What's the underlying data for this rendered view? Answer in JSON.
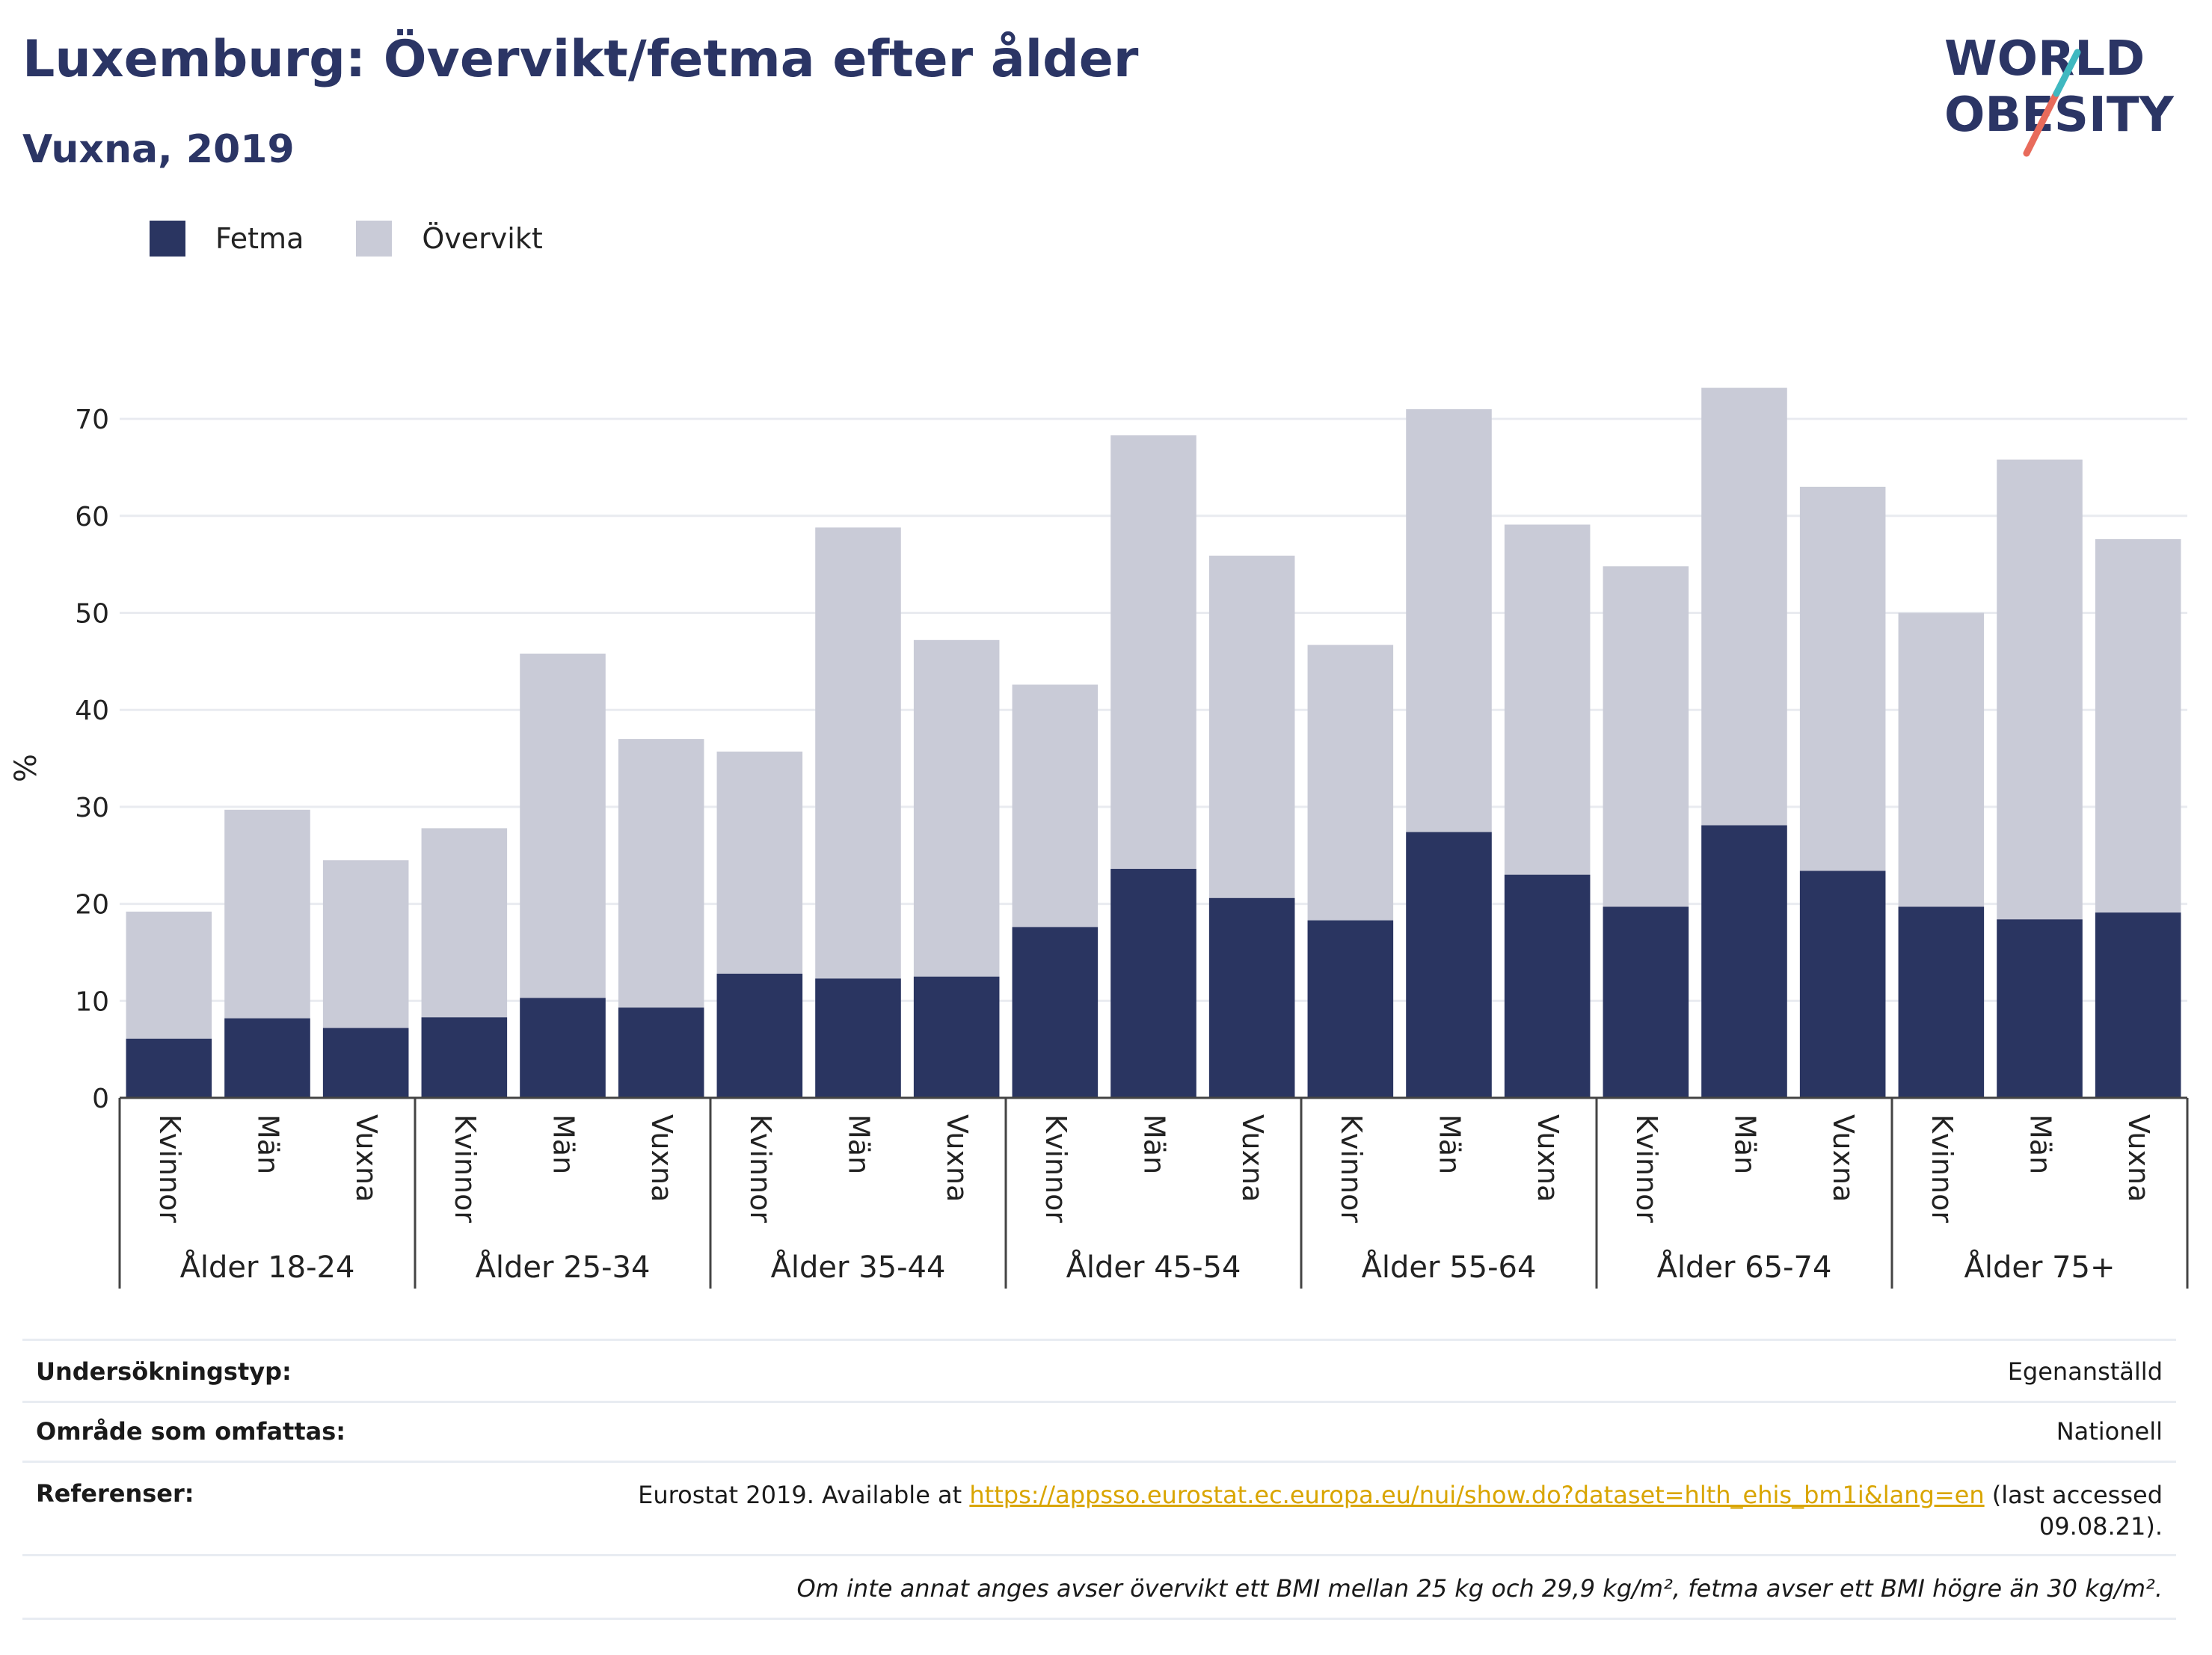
{
  "header": {
    "title": "Luxemburg: Övervikt/fetma efter ålder",
    "subtitle": "Vuxna, 2019"
  },
  "logo": {
    "line1": "WORLD",
    "line2": "OBESITY"
  },
  "legend": [
    {
      "label": "Fetma",
      "color": "#2a3561"
    },
    {
      "label": "Övervikt",
      "color": "#c9cbd7"
    }
  ],
  "chart_data": {
    "type": "bar",
    "stacked": false,
    "ylabel": "%",
    "ylim": [
      0,
      75
    ],
    "yticks": [
      0,
      10,
      20,
      30,
      40,
      50,
      60,
      70
    ],
    "grid": true,
    "legend_position": "top-left",
    "groups": [
      "Ålder 18-24",
      "Ålder 25-34",
      "Ålder 35-44",
      "Ålder 45-54",
      "Ålder 55-64",
      "Ålder 65-74",
      "Ålder 75+"
    ],
    "subcategories": [
      "Kvinnor",
      "Män",
      "Vuxna"
    ],
    "series": [
      {
        "name": "Fetma",
        "color": "#2a3561",
        "values": [
          6.1,
          8.2,
          7.2,
          8.3,
          10.3,
          9.3,
          12.8,
          12.3,
          12.5,
          17.6,
          23.6,
          20.6,
          18.3,
          27.4,
          23.0,
          19.7,
          28.1,
          23.4,
          19.7,
          18.4,
          19.1
        ]
      },
      {
        "name": "Övervikt",
        "color": "#c9cbd7",
        "values": [
          19.2,
          29.7,
          24.5,
          27.8,
          45.8,
          37.0,
          35.7,
          58.8,
          47.2,
          42.6,
          68.3,
          55.9,
          46.7,
          71.0,
          59.1,
          54.8,
          73.2,
          63.0,
          50.0,
          65.8,
          57.6
        ]
      }
    ]
  },
  "info": {
    "survey_label": "Undersökningstyp:",
    "survey_value": "Egenanställd",
    "area_label": "Område som omfattas:",
    "area_value": "Nationell",
    "ref_label": "Referenser:",
    "ref_prefix": "Eurostat 2019. Available at ",
    "ref_link": "https://appsso.eurostat.ec.europa.eu/nui/show.do?dataset=hlth_ehis_bm1i&lang=en",
    "ref_suffix": " (last accessed",
    "ref_date": "09.08.21).",
    "note": "Om inte annat anges avser övervikt ett BMI mellan 25 kg och 29,9 kg/m², fetma avser ett BMI högre än 30 kg/m²."
  }
}
